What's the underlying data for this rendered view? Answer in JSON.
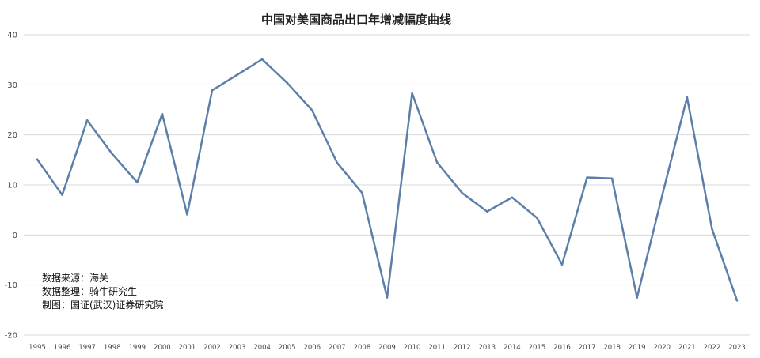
{
  "chart_data": {
    "type": "line",
    "title": "中国对美国商品出口年增减幅度曲线",
    "xlabel": "",
    "ylabel": "",
    "ylim": [
      -20,
      40
    ],
    "yticks": [
      "40",
      "30",
      "20",
      "10",
      "0",
      "-10",
      "-20"
    ],
    "grid": true,
    "legend": "none",
    "line_color": "#5b7fa9",
    "x": [
      "1995",
      "1996",
      "1997",
      "1998",
      "1999",
      "2000",
      "2001",
      "2002",
      "2003",
      "2004",
      "2005",
      "2006",
      "2007",
      "2008",
      "2009",
      "2010",
      "2011",
      "2012",
      "2013",
      "2014",
      "2015",
      "2016",
      "2017",
      "2018",
      "2019",
      "2020",
      "2021",
      "2022",
      "2023"
    ],
    "series": [
      {
        "values": [
          15.1,
          8.0,
          22.9,
          16.2,
          10.5,
          24.2,
          4.1,
          28.9,
          32.0,
          35.1,
          30.4,
          24.9,
          14.4,
          8.4,
          -12.5,
          28.3,
          14.5,
          8.4,
          4.7,
          7.5,
          3.4,
          -5.9,
          11.5,
          11.3,
          -12.5,
          7.8,
          27.5,
          1.2,
          -13.1
        ]
      }
    ]
  },
  "notes": {
    "line1": "数据来源：海关",
    "line2": "数据整理：骑牛研究生",
    "line3": "制图：国证(武汉)证券研究院"
  }
}
